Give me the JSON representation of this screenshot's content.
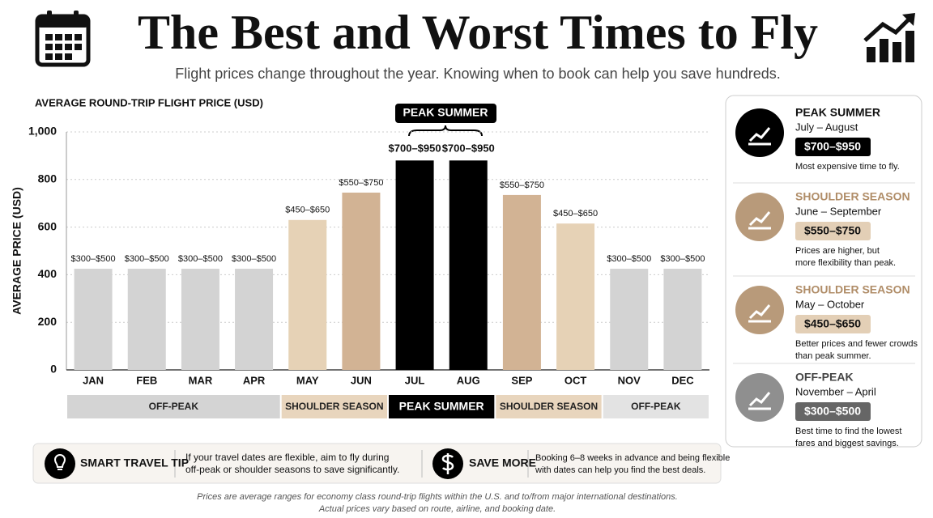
{
  "header": {
    "title": "The Best and Worst Times to Fly",
    "subtitle": "Flight prices change throughout the year. Knowing when to book can help you save hundreds."
  },
  "chart_data": {
    "type": "bar",
    "title": "AVERAGE ROUND-TRIP FLIGHT PRICE (USD)",
    "y_label": "AVERAGE PRICE (USD)",
    "categories": [
      "JAN",
      "FEB",
      "MAR",
      "APR",
      "MAY",
      "JUN",
      "JUL",
      "AUG",
      "SEP",
      "OCT",
      "NOV",
      "DEC"
    ],
    "values": [
      425,
      425,
      425,
      425,
      630,
      745,
      880,
      880,
      735,
      615,
      425,
      425
    ],
    "annotations": [
      "$300–$500",
      "$300–$500",
      "$300–$500",
      "$300–$500",
      "$450–$650",
      "$550–$750",
      "$700–$950",
      "$700–$950",
      "$550–$750",
      "$450–$650",
      "$300–$500",
      "$300–$500"
    ],
    "colors": [
      "#d3d3d3",
      "#d3d3d3",
      "#d3d3d3",
      "#d3d3d3",
      "#e6d2b6",
      "#d2b394",
      "#000000",
      "#000000",
      "#d2b394",
      "#e6d2b6",
      "#d3d3d3",
      "#d3d3d3"
    ],
    "ylim": [
      0,
      1000
    ],
    "yticks": [
      0,
      200,
      400,
      600,
      800,
      {
        "value": 1000,
        "label": "1,000"
      }
    ],
    "grid": true,
    "bracket_label": "PEAK SUMMER",
    "seasons": [
      {
        "label": "OFF-PEAK",
        "span": 4,
        "color": "#d4d4d4"
      },
      {
        "label": "SHOULDER SEASON",
        "span": 2,
        "color": "#e8d5bd"
      },
      {
        "label": "PEAK SUMMER",
        "span": 2,
        "color": "#000000"
      },
      {
        "label": "SHOULDER SEASON",
        "span": 2,
        "color": "#e8d5bd"
      },
      {
        "label": "OFF-PEAK",
        "span": 2,
        "color": "#e3e3e3"
      }
    ]
  },
  "side_panel": [
    {
      "title": "PEAK SUMMER",
      "period": "July – August",
      "price": "$700–$950",
      "description": [
        "Most expensive time to fly."
      ]
    },
    {
      "title": "SHOULDER SEASON",
      "period": "June – September",
      "price": "$550–$750",
      "description": [
        "Prices are higher, but",
        "more flexibility than peak."
      ]
    },
    {
      "title": "SHOULDER SEASON",
      "period": "May – October",
      "price": "$450–$650",
      "description": [
        "Better prices and fewer crowds",
        "than peak summer."
      ]
    },
    {
      "title": "OFF-PEAK",
      "period": "November – April",
      "price": "$300–$500",
      "description": [
        "Best time to find the lowest",
        "fares and biggest savings."
      ]
    }
  ],
  "tips": [
    {
      "title": "SMART TRAVEL TIP",
      "text": [
        "If your travel dates are flexible, aim to fly during",
        "off-peak or shoulder seasons to save significantly."
      ]
    },
    {
      "title": "SAVE MORE",
      "text": [
        "Booking 6–8 weeks in advance and being flexible",
        "with dates can help you find the best deals."
      ]
    }
  ],
  "footer": [
    "Prices are average ranges for economy class round-trip flights within the U.S. and to/from major international destinations.",
    "Actual prices vary based on route, airline, and booking date."
  ]
}
